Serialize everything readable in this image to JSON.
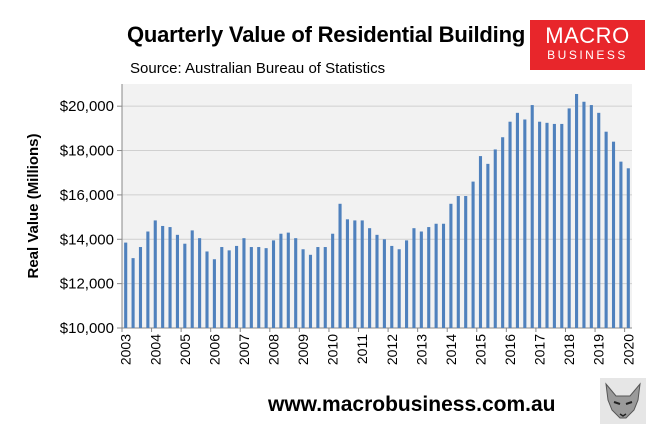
{
  "title": "Quarterly Value of Residential Building",
  "source": "Source: Australian Bureau of Statistics",
  "logo": {
    "line1": "MACRO",
    "line2": "BUSINESS",
    "color": "#e8262b"
  },
  "footer": "www.macrobusiness.com.au",
  "fox_icon": "fox-logo-icon",
  "chart_data": {
    "type": "bar",
    "ylabel": "Real Value (Millions)",
    "xlabel": "",
    "ylim": [
      10000,
      21000
    ],
    "yticks": [
      10000,
      12000,
      14000,
      16000,
      18000,
      20000
    ],
    "ytick_labels": [
      "$10,000",
      "$12,000",
      "$14,000",
      "$16,000",
      "$18,000",
      "$20,000"
    ],
    "xticks": [
      "2003",
      "2004",
      "2005",
      "2006",
      "2007",
      "2008",
      "2009",
      "2010",
      "2011",
      "2012",
      "2013",
      "2014",
      "2015",
      "2016",
      "2017",
      "2018",
      "2019",
      "2020"
    ],
    "start": "2003-Q1",
    "bar_color": "#4f81bd",
    "plot_background": "#f2f2f2",
    "gridlines": "horizontal",
    "values": [
      13850,
      13150,
      13650,
      14350,
      14850,
      14600,
      14550,
      14200,
      13800,
      14400,
      14050,
      13450,
      13100,
      13650,
      13500,
      13700,
      14050,
      13650,
      13650,
      13600,
      13950,
      14250,
      14300,
      14050,
      13550,
      13300,
      13650,
      13650,
      14250,
      15600,
      14900,
      14850,
      14850,
      14500,
      14200,
      14000,
      13700,
      13550,
      13950,
      14500,
      14350,
      14550,
      14700,
      14700,
      15600,
      15950,
      15950,
      16600,
      17750,
      17400,
      18050,
      18600,
      19300,
      19700,
      19400,
      20050,
      19300,
      19250,
      19200,
      19200,
      19900,
      20550,
      20200,
      20050,
      19700,
      18850,
      18400,
      17500,
      17200
    ]
  }
}
